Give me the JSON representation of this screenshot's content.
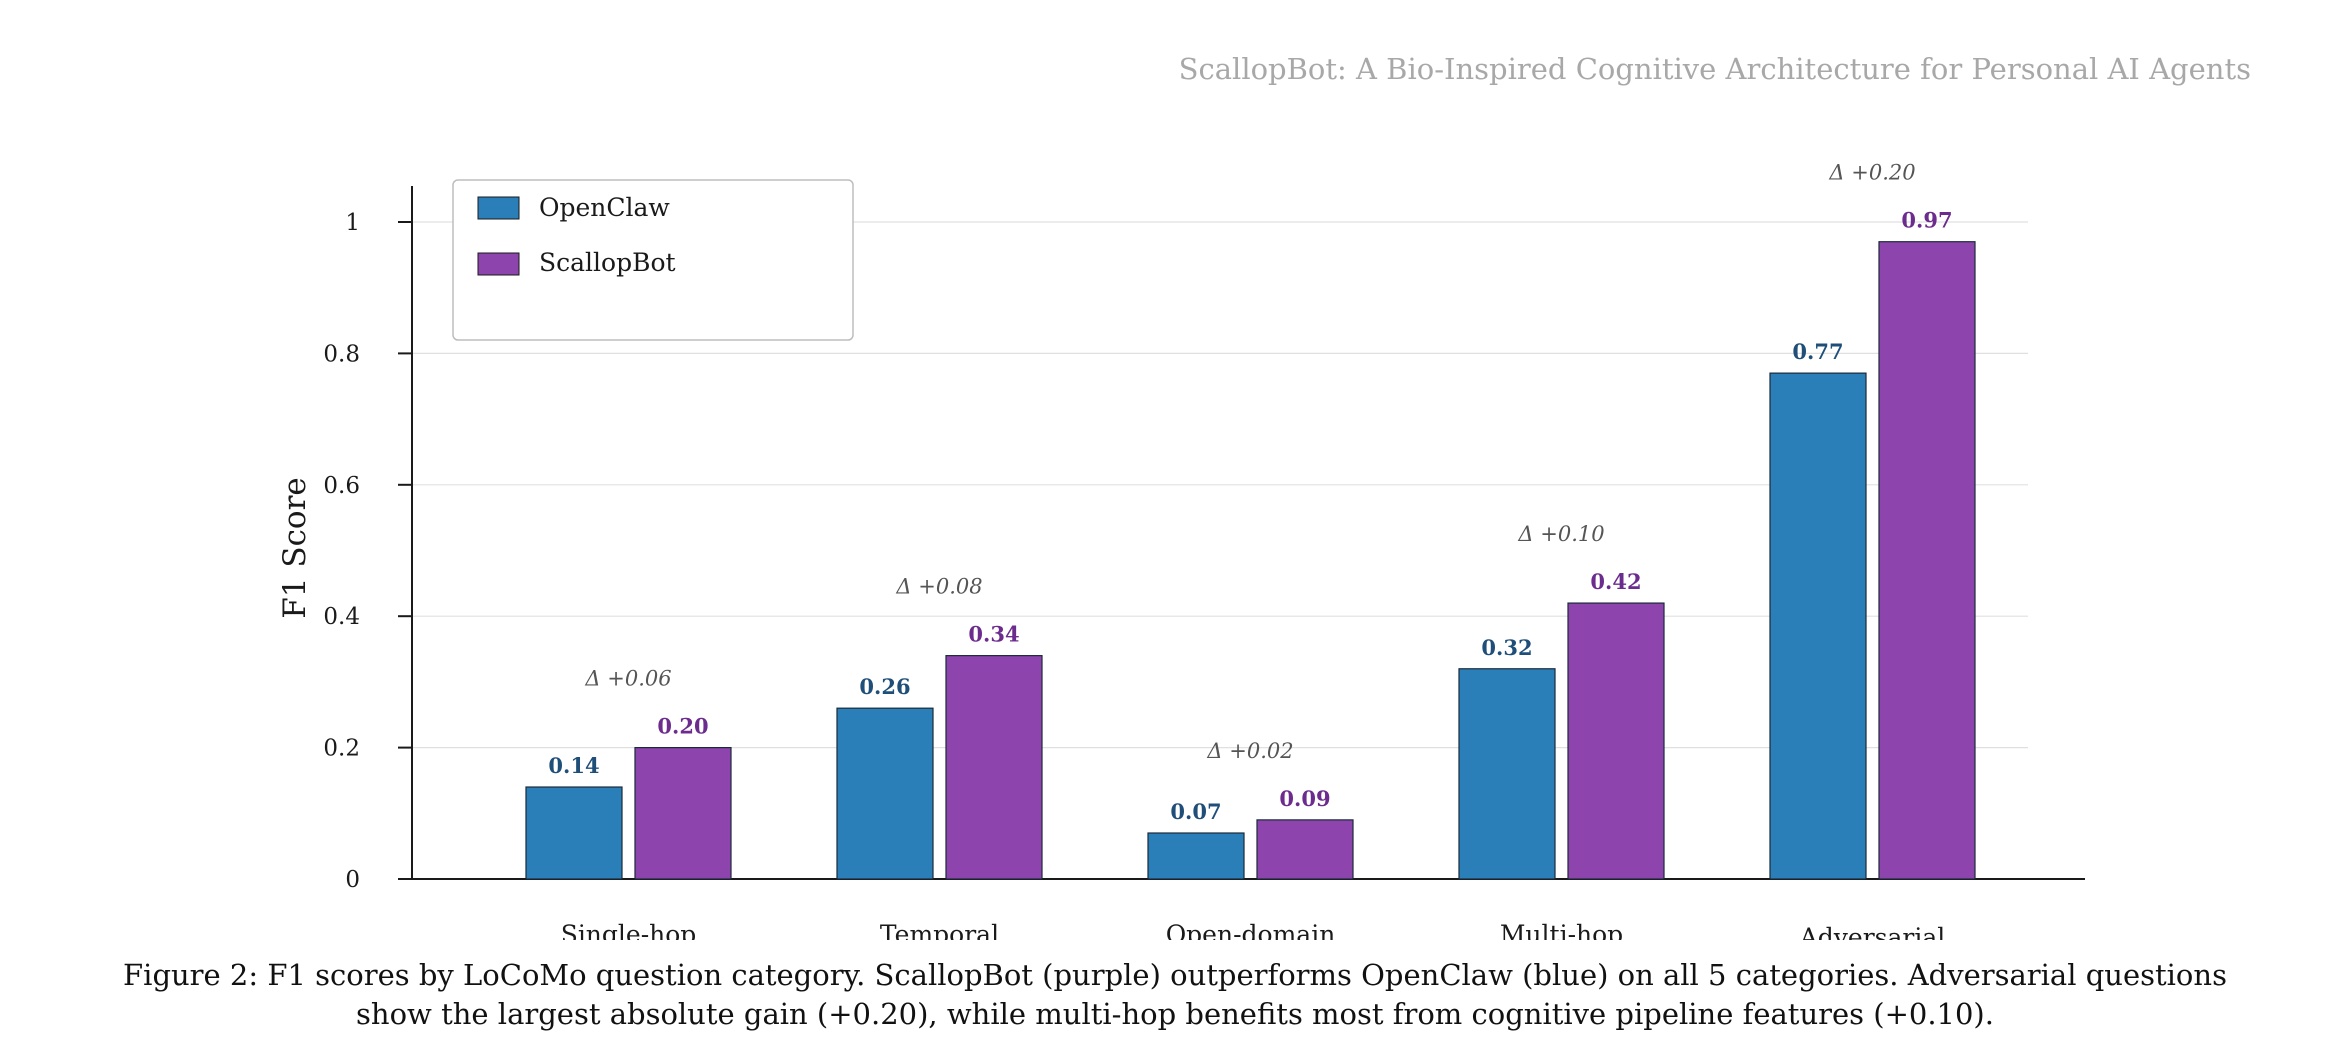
{
  "header": {
    "title": "ScallopBot: A Bio-Inspired Cognitive Architecture for Personal AI Agents"
  },
  "chart_data": {
    "type": "bar",
    "categories": [
      "Single-hop",
      "Temporal",
      "Open-domain",
      "Multi-hop",
      "Adversarial"
    ],
    "series": [
      {
        "name": "OpenClaw",
        "values": [
          0.14,
          0.26,
          0.07,
          0.32,
          0.77
        ],
        "labels": [
          "0.14",
          "0.26",
          "0.07",
          "0.32",
          "0.77"
        ],
        "color": "#2a7fb8",
        "label_color": "#1f4e79"
      },
      {
        "name": "ScallopBot",
        "values": [
          0.2,
          0.34,
          0.09,
          0.42,
          0.97
        ],
        "labels": [
          "0.20",
          "0.34",
          "0.09",
          "0.42",
          "0.97"
        ],
        "color": "#8e44ad",
        "label_color": "#6c2c8e"
      }
    ],
    "deltas": [
      "Δ +0.06",
      "Δ +0.08",
      "Δ +0.02",
      "Δ +0.10",
      "Δ +0.20"
    ],
    "ylabel": "F1 Score",
    "xlabel": "",
    "ylim": [
      0,
      1.05
    ],
    "yticks": [
      0,
      0.2,
      0.4,
      0.6,
      0.8,
      1
    ],
    "ytick_labels": [
      "0",
      "0.2",
      "0.4",
      "0.6",
      "0.8",
      "1"
    ],
    "grid": true,
    "legend_position": "top-left"
  },
  "caption": {
    "text": "Figure 2: F1 scores by LoCoMo question category. ScallopBot (purple) outperforms OpenClaw (blue) on all 5 categories. Adversarial questions show the largest absolute gain (+0.20), while multi-hop benefits most from cognitive pipeline features (+0.10)."
  }
}
